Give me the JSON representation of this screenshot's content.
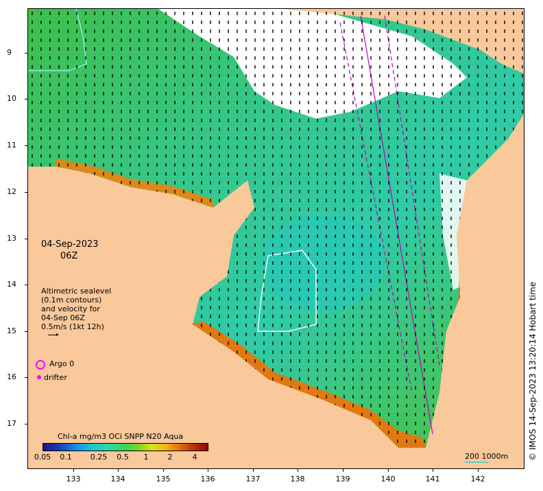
{
  "map": {
    "y_axis_labels": [
      "9",
      "10",
      "11",
      "12",
      "13",
      "14",
      "15",
      "16",
      "17"
    ],
    "x_axis_labels": [
      "133",
      "134",
      "135",
      "136",
      "137",
      "138",
      "139",
      "140",
      "141",
      "142"
    ],
    "date": "04-Sep-2023",
    "time": "06Z",
    "legend_lines": [
      "Altimetric sealevel",
      "(0.1m contours)",
      "and velocity for",
      "04-Sep 06Z",
      "0.5m/s (1kt 12h)"
    ],
    "argo_label": "Argo 0",
    "drifter_label": "drifter",
    "colorbar_title": "Chl-a mg/m3 OCi SNPP N20 Aqua",
    "colorbar_ticks": [
      "0.05",
      "0.1",
      "0.25",
      "0.5",
      "1",
      "2",
      "4"
    ],
    "scale_label": "200  1000m",
    "credit": "© IMOS 14-Sep-2023 13:20:14 Hobart time",
    "colors": {
      "land": "#f9c89b",
      "ocean_green": "#3cc45a",
      "ocean_teal": "#2fc9a8",
      "coastal_orange": "#e07a10",
      "track_magenta": "#c000c0",
      "contour_white": "#ffffff"
    }
  }
}
